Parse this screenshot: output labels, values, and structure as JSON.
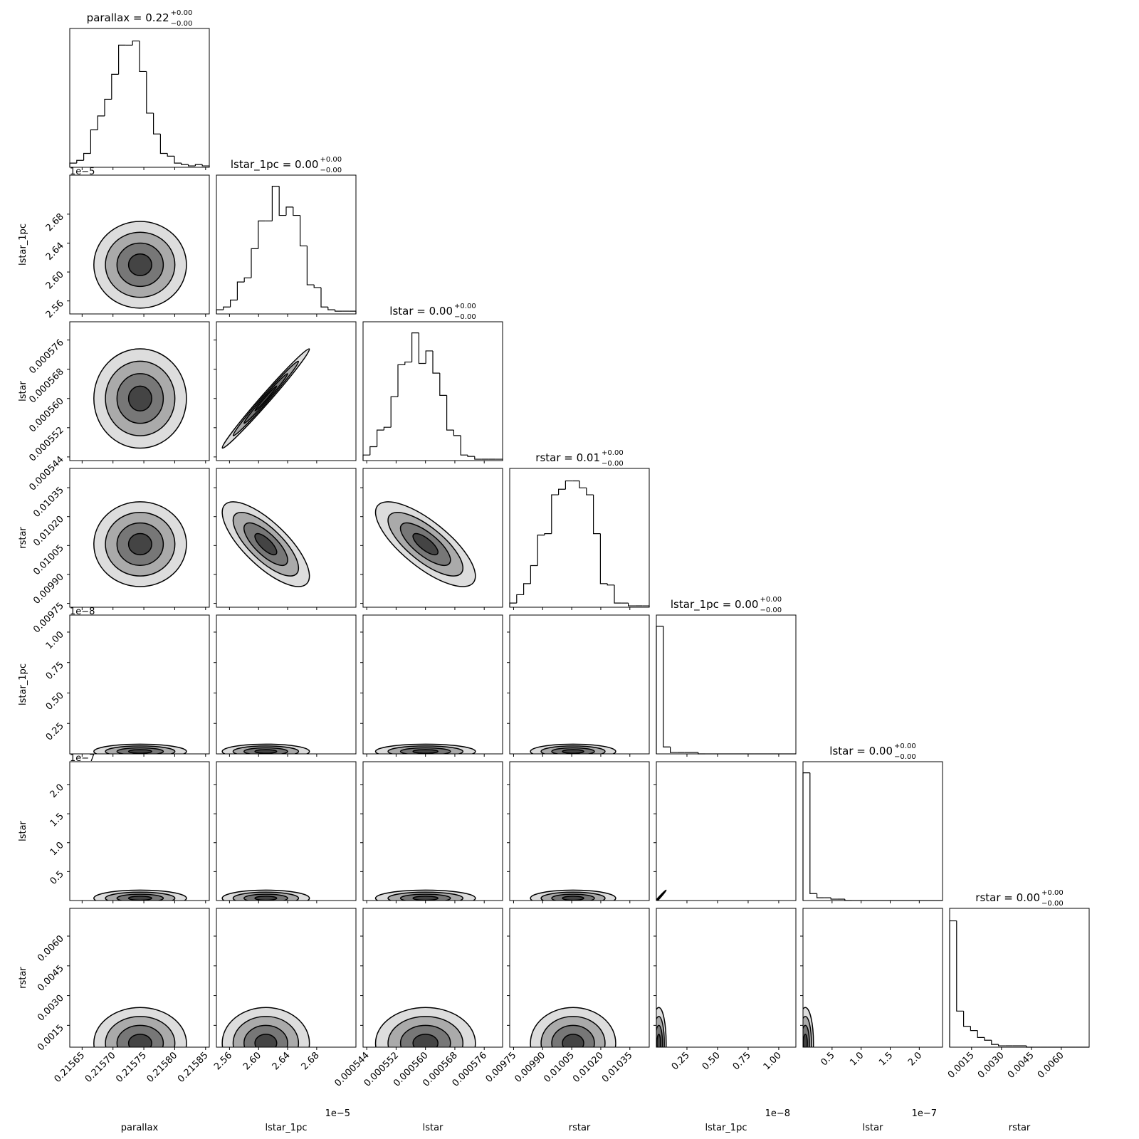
{
  "chart_data": {
    "type": "corner",
    "color": "#000000",
    "levels": [
      0.5,
      1,
      1.5,
      2
    ],
    "hist_ylim": [
      0,
      100
    ],
    "variables": [
      {
        "label": "parallax",
        "title": "parallax = 0.22",
        "plus": "+0.00",
        "minus": "−0.00",
        "lim": [
          0.21563,
          0.215856
        ],
        "ticks": [
          0.21565,
          {
            "value": 0.2157,
            "label": "0.21570"
          },
          0.21575,
          {
            "value": 0.2158,
            "label": "0.21580"
          },
          0.21585
        ]
      },
      {
        "label": "lstar_1pc",
        "title": "lstar_1pc = 0.00",
        "plus": "+0.00",
        "minus": "−0.00",
        "lim": [
          2.542,
          2.734
        ],
        "offset": "1e−5",
        "ticks": [
          2.56,
          {
            "value": 2.6,
            "label": "2.60"
          },
          2.64,
          2.68
        ]
      },
      {
        "label": "lstar",
        "title": "lstar = 0.00",
        "plus": "+0.00",
        "minus": "−0.00",
        "lim": [
          0.000543,
          0.000581
        ],
        "ticks": [
          0.000544,
          0.000552,
          {
            "value": 0.00056,
            "label": "0.000560"
          },
          0.000568,
          0.000576
        ]
      },
      {
        "label": "rstar",
        "title": "rstar = 0.01",
        "plus": "+0.00",
        "minus": "−0.00",
        "lim": [
          0.00973,
          0.01045
        ],
        "ticks": [
          0.00975,
          {
            "value": 0.0099,
            "label": "0.00990"
          },
          0.01005,
          {
            "value": 0.0102,
            "label": "0.01020"
          },
          0.01035
        ]
      },
      {
        "label": "lstar_1pc",
        "title": "lstar_1pc = 0.00",
        "plus": "+0.00",
        "minus": "−0.00",
        "lim": [
          0,
          1.14
        ],
        "offset": "1e−8",
        "ticks": [
          0.25,
          {
            "value": 0.5,
            "label": "0.50"
          },
          0.75,
          {
            "value": 1,
            "label": "1.00"
          }
        ]
      },
      {
        "label": "lstar",
        "title": "lstar = 0.00",
        "plus": "+0.00",
        "minus": "−0.00",
        "lim": [
          0,
          2.4
        ],
        "offset": "1e−7",
        "ticks": [
          0.5,
          {
            "value": 1,
            "label": "1.0"
          },
          1.5,
          {
            "value": 2,
            "label": "2.0"
          }
        ]
      },
      {
        "label": "rstar",
        "title": "rstar = 0.00",
        "plus": "+0.00",
        "minus": "−0.00",
        "lim": [
          0.0004,
          0.0074
        ],
        "ticks": [
          0.0015,
          {
            "value": 0.003,
            "label": "0.0030"
          },
          0.0045,
          {
            "value": 0.006,
            "label": "0.0060"
          }
        ]
      }
    ],
    "histograms": [
      {
        "bins": [
          0.21563,
          0.2156413,
          0.2156526,
          0.2156639,
          0.2156752,
          0.2156865,
          0.2156978,
          0.2157091,
          0.2157204,
          0.2157317,
          0.215743,
          0.2157543,
          0.2157656,
          0.2157769,
          0.2157882,
          0.2157995,
          0.2158108,
          0.2158221,
          0.2158334,
          0.2158447,
          0.215856
        ],
        "values": [
          3,
          5,
          10,
          27,
          37,
          49,
          67,
          88,
          88,
          91,
          69,
          39,
          24,
          10,
          8,
          3,
          2,
          1,
          2,
          1
        ]
      },
      {
        "bins": [
          2.542,
          2.5516,
          2.5612,
          2.5708,
          2.5804,
          2.59,
          2.5996,
          2.6092,
          2.6188,
          2.6284,
          2.638,
          2.6476,
          2.6572,
          2.6668,
          2.6764,
          2.686,
          2.6956,
          2.7052,
          2.7148,
          2.7244,
          2.734
        ],
        "values": [
          3,
          5,
          10,
          23,
          26,
          47,
          67,
          67,
          92,
          71,
          77,
          71,
          49,
          21,
          19,
          5,
          3,
          2,
          2,
          2
        ]
      },
      {
        "bins": [
          0.000543,
          0.0005449,
          0.0005468,
          0.0005487,
          0.0005506,
          0.0005525,
          0.0005544,
          0.0005563,
          0.0005582,
          0.0005601,
          0.000562,
          0.0005639,
          0.0005658,
          0.0005677,
          0.0005696,
          0.0005715,
          0.0005734,
          0.0005753,
          0.0005772,
          0.0005791,
          0.000581
        ],
        "values": [
          4,
          10,
          22,
          24,
          46,
          69,
          71,
          92,
          70,
          79,
          63,
          47,
          22,
          18,
          4,
          3,
          1,
          1,
          1,
          1
        ]
      },
      {
        "bins": [
          0.00973,
          0.009766,
          0.009802,
          0.009838,
          0.009874,
          0.00991,
          0.009946,
          0.009982,
          0.010018,
          0.010054,
          0.01009,
          0.010126,
          0.010162,
          0.010198,
          0.010234,
          0.01027,
          0.010306,
          0.010342,
          0.010378,
          0.010414,
          0.01045
        ],
        "values": [
          3,
          9,
          17,
          30,
          52,
          53,
          81,
          85,
          91,
          91,
          86,
          81,
          53,
          17,
          16,
          3,
          3,
          1,
          1,
          1
        ]
      },
      {
        "bins": [
          0,
          0.057,
          0.114,
          0.171,
          0.228,
          0.285,
          0.342,
          0.399,
          0.456,
          0.513,
          0.57,
          0.627,
          0.684,
          0.741,
          0.798,
          0.855,
          0.912,
          0.969,
          1.026,
          1.083,
          1.14
        ],
        "values": [
          92,
          5,
          1,
          1,
          1,
          1,
          0,
          0,
          0,
          0,
          0,
          0,
          0,
          0,
          0,
          0,
          0,
          0,
          0,
          0
        ]
      },
      {
        "bins": [
          0,
          0.12,
          0.24,
          0.36,
          0.48,
          0.6,
          0.72,
          0.84,
          0.96,
          1.08,
          1.2,
          1.32,
          1.44,
          1.56,
          1.68,
          1.8,
          1.92,
          2.04,
          2.16,
          2.28,
          2.4
        ],
        "values": [
          92,
          5,
          2,
          2,
          1,
          1,
          0,
          0,
          0,
          0,
          0,
          0,
          0,
          0,
          0,
          0,
          0,
          0,
          0,
          0
        ]
      },
      {
        "bins": [
          0.0004,
          0.00075,
          0.0011,
          0.00145,
          0.0018,
          0.00215,
          0.0025,
          0.00285,
          0.0032,
          0.00355,
          0.0039,
          0.00425,
          0.0046,
          0.00495,
          0.0053,
          0.00565,
          0.006,
          0.00635,
          0.0067,
          0.00705,
          0.0074
        ],
        "values": [
          91,
          26,
          15,
          12,
          7,
          5,
          2,
          1,
          1,
          1,
          1,
          0,
          0,
          0,
          0,
          0,
          0,
          0,
          0,
          0
        ]
      }
    ],
    "pairs": [
      [
        {
          "mean": [
            0.215744,
            2.61
          ],
          "sd": [
            3.75e-05,
            0.03
          ],
          "rho": 0
        }
      ],
      [
        {
          "mean": [
            0.215744,
            0.00056
          ],
          "sd": [
            3.75e-05,
            6.8e-06
          ],
          "rho": 0
        },
        {
          "mean": [
            2.61,
            0.00056
          ],
          "sd": [
            0.03,
            6.8e-06
          ],
          "rho": 0.99
        }
      ],
      [
        {
          "mean": [
            0.215744,
            0.010057
          ],
          "sd": [
            3.75e-05,
            0.00011
          ],
          "rho": 0
        },
        {
          "mean": [
            2.61,
            0.010057
          ],
          "sd": [
            0.03,
            0.00011
          ],
          "rho": -0.75
        },
        {
          "mean": [
            0.00056,
            0.010057
          ],
          "sd": [
            6.8e-06,
            0.00011
          ],
          "rho": -0.75
        }
      ],
      [
        {
          "mean": [
            0.215744,
            0.02
          ],
          "sd": [
            3.75e-05,
            0.03
          ],
          "rho": 0
        },
        {
          "mean": [
            2.61,
            0.02
          ],
          "sd": [
            0.03,
            0.03
          ],
          "rho": 0
        },
        {
          "mean": [
            0.00056,
            0.02
          ],
          "sd": [
            6.8e-06,
            0.03
          ],
          "rho": 0
        },
        {
          "mean": [
            0.010057,
            0.02
          ],
          "sd": [
            0.00011,
            0.03
          ],
          "rho": 0
        }
      ],
      [
        {
          "mean": [
            0.215744,
            0.04
          ],
          "sd": [
            3.75e-05,
            0.07
          ],
          "rho": 0
        },
        {
          "mean": [
            2.61,
            0.04
          ],
          "sd": [
            0.03,
            0.07
          ],
          "rho": 0
        },
        {
          "mean": [
            0.00056,
            0.04
          ],
          "sd": [
            6.8e-06,
            0.07
          ],
          "rho": 0
        },
        {
          "mean": [
            0.010057,
            0.04
          ],
          "sd": [
            0.00011,
            0.07
          ],
          "rho": 0
        },
        {
          "mean": [
            0.02,
            0.04
          ],
          "sd": [
            0.03,
            0.07
          ],
          "rho": 0.99
        }
      ],
      [
        {
          "mean": [
            0.215744,
            0.0006
          ],
          "sd": [
            3.75e-05,
            0.0009
          ],
          "rho": 0
        },
        {
          "mean": [
            2.61,
            0.0006
          ],
          "sd": [
            0.03,
            0.0009
          ],
          "rho": 0
        },
        {
          "mean": [
            0.00056,
            0.0006
          ],
          "sd": [
            6.8e-06,
            0.0009
          ],
          "rho": 0
        },
        {
          "mean": [
            0.010057,
            0.0006
          ],
          "sd": [
            0.00011,
            0.0009
          ],
          "rho": 0
        },
        {
          "mean": [
            0.02,
            0.0006
          ],
          "sd": [
            0.03,
            0.0009
          ],
          "rho": 0
        },
        {
          "mean": [
            0.04,
            0.0006
          ],
          "sd": [
            0.07,
            0.0009
          ],
          "rho": 0
        }
      ]
    ]
  }
}
